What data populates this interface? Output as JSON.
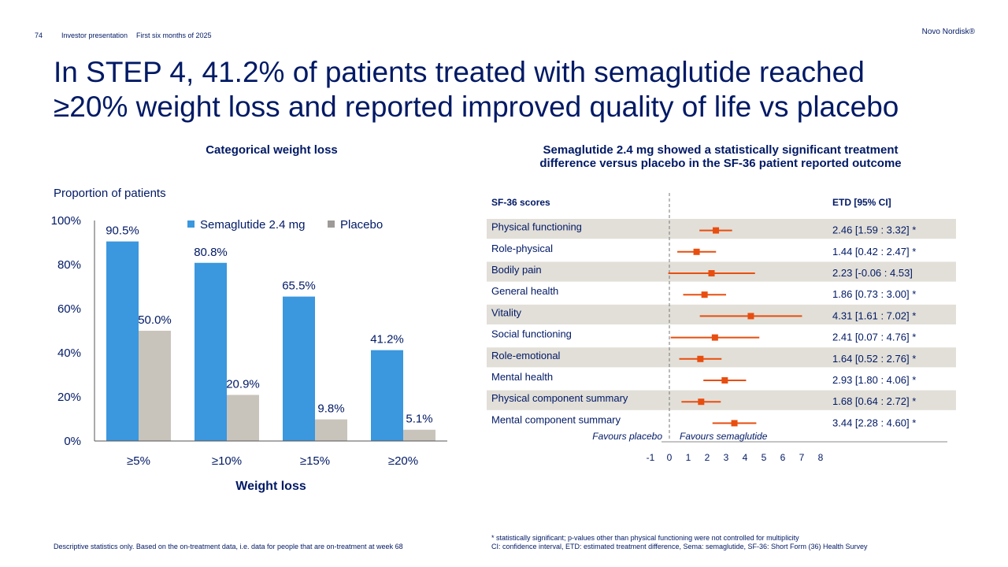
{
  "header": {
    "page_number": "74",
    "presentation": "Investor presentation",
    "period": "First six months of 2025",
    "brand": "Novo Nordisk®"
  },
  "title": {
    "line1": "In STEP 4, 41.2% of patients treated with semaglutide reached",
    "line2": "≥20% weight loss and reported improved quality of life vs placebo"
  },
  "colors": {
    "navy": "#001965",
    "semaglutide": "#3B97DE",
    "placebo": "#C9C4BB",
    "forest_marker": "#E84E0F",
    "row_band": "#E2DFD8"
  },
  "chart_data": [
    {
      "type": "bar",
      "title": "Categorical weight loss",
      "ylabel": "Proportion of patients",
      "xlabel": "Weight loss",
      "categories": [
        "≥5%",
        "≥10%",
        "≥15%",
        "≥20%"
      ],
      "series": [
        {
          "name": "Semaglutide 2.4 mg",
          "values": [
            90.5,
            80.8,
            65.5,
            41.2
          ],
          "labels": [
            "90.5%",
            "80.8%",
            "65.5%",
            "41.2%"
          ]
        },
        {
          "name": "Placebo",
          "values": [
            50.0,
            20.9,
            9.8,
            5.1
          ],
          "labels": [
            "50.0%",
            "20.9%",
            "9.8%",
            "5.1%"
          ]
        }
      ],
      "ylim": [
        0,
        100
      ],
      "yticks": [
        0,
        20,
        40,
        60,
        80,
        100
      ],
      "ytick_labels": [
        "0%",
        "20%",
        "40%",
        "60%",
        "80%",
        "100%"
      ],
      "legend": "top-right"
    },
    {
      "type": "forest",
      "title_line1": "Semaglutide 2.4 mg showed a statistically significant treatment",
      "title_line2": "difference versus placebo in the SF-36 patient reported outcome",
      "col_left_header": "SF-36 scores",
      "col_right_header": "ETD [95% CI]",
      "rows": [
        {
          "label": "Physical functioning",
          "est": 2.46,
          "lo": 1.59,
          "hi": 3.32,
          "text": "2.46 [1.59 : 3.32] *",
          "shaded": true
        },
        {
          "label": "Role-physical",
          "est": 1.44,
          "lo": 0.42,
          "hi": 2.47,
          "text": "1.44 [0.42 : 2.47] *",
          "shaded": false
        },
        {
          "label": "Bodily pain",
          "est": 2.23,
          "lo": -0.06,
          "hi": 4.53,
          "text": "2.23 [-0.06 : 4.53]",
          "shaded": true
        },
        {
          "label": "General health",
          "est": 1.86,
          "lo": 0.73,
          "hi": 3.0,
          "text": "1.86 [0.73 : 3.00] *",
          "shaded": false
        },
        {
          "label": "Vitality",
          "est": 4.31,
          "lo": 1.61,
          "hi": 7.02,
          "text": "4.31 [1.61 : 7.02] *",
          "shaded": true
        },
        {
          "label": "Social functioning",
          "est": 2.41,
          "lo": 0.07,
          "hi": 4.76,
          "text": "2.41 [0.07 : 4.76] *",
          "shaded": false
        },
        {
          "label": "Role-emotional",
          "est": 1.64,
          "lo": 0.52,
          "hi": 2.76,
          "text": "1.64 [0.52 : 2.76] *",
          "shaded": true
        },
        {
          "label": "Mental health",
          "est": 2.93,
          "lo": 1.8,
          "hi": 4.06,
          "text": "2.93 [1.80 : 4.06] *",
          "shaded": false
        },
        {
          "label": "Physical component summary",
          "est": 1.68,
          "lo": 0.64,
          "hi": 2.72,
          "text": "1.68 [0.64 : 2.72] *",
          "shaded": true
        },
        {
          "label": "Mental component summary",
          "est": 3.44,
          "lo": 2.28,
          "hi": 4.6,
          "text": "3.44 [2.28 : 4.60] *",
          "shaded": false
        }
      ],
      "xlim": [
        -1,
        8
      ],
      "xticks": [
        -1,
        0,
        1,
        2,
        3,
        4,
        5,
        6,
        7,
        8
      ],
      "xtick_labels": [
        "-1",
        "0",
        "1",
        "2",
        "3",
        "4",
        "5",
        "6",
        "7",
        "8"
      ],
      "favours_left": "Favours placebo",
      "favours_right": "Favours semaglutide"
    }
  ],
  "footnotes": {
    "left": "Descriptive statistics only. Based on the on-treatment data, i.e. data for people that are on-treatment at week 68",
    "right1": "* statistically significant; p-values other than physical functioning were not controlled for multiplicity",
    "right2": "CI: confidence interval, ETD: estimated treatment difference, Sema: semaglutide, SF-36: Short Form (36) Health Survey"
  }
}
